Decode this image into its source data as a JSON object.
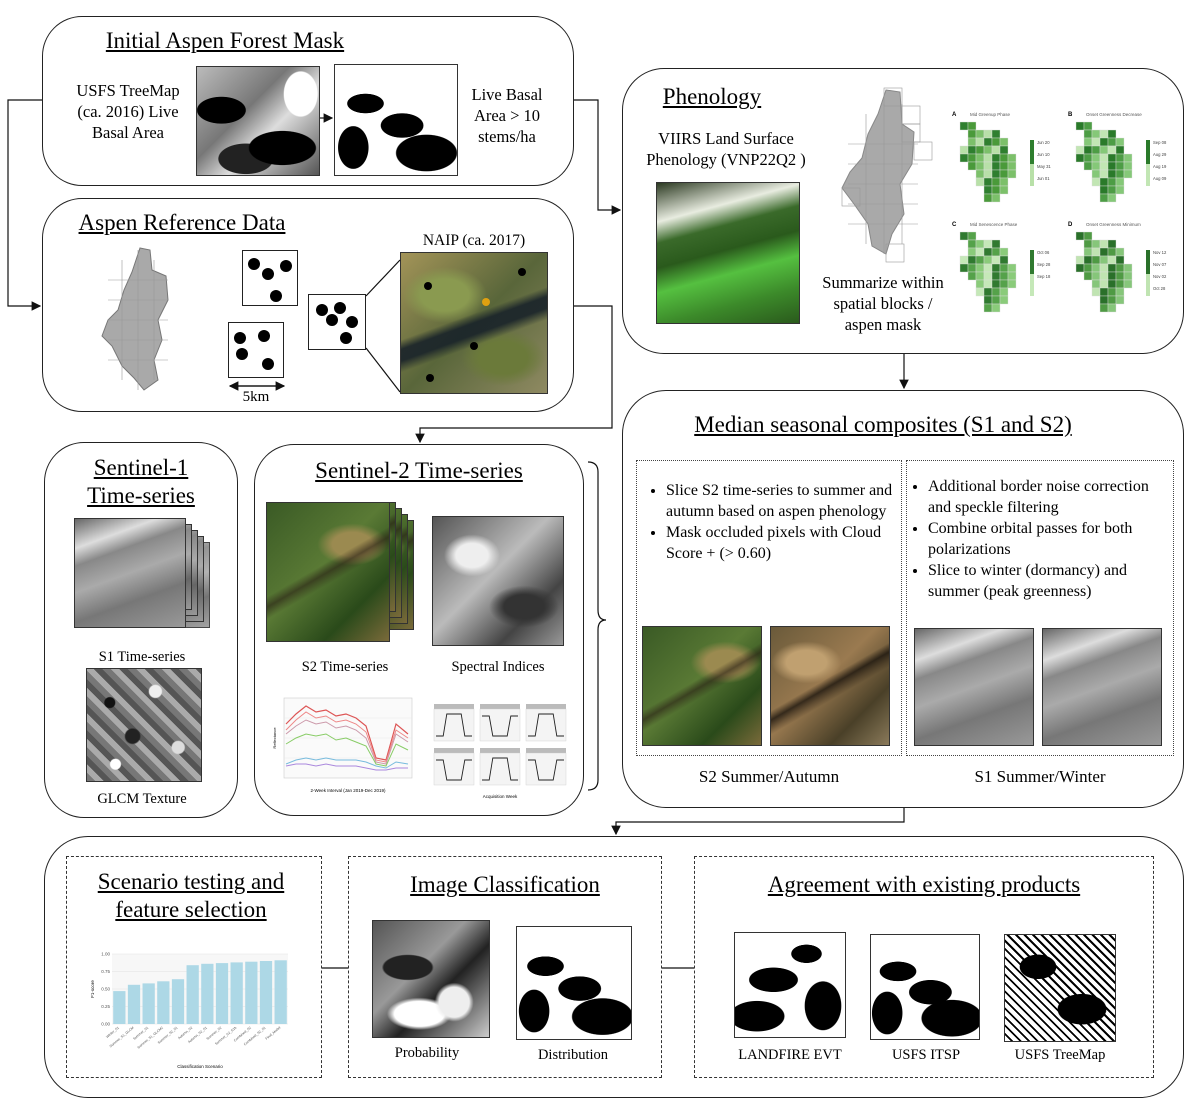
{
  "initial_mask": {
    "title": "Initial Aspen Forest Mask",
    "source_label_1": "USFS TreeMap",
    "source_label_2": "(ca. 2016) Live",
    "source_label_3": "Basal Area",
    "result_label_1": "Live Basal",
    "result_label_2": "Area > 10",
    "result_label_3": "stems/ha"
  },
  "reference": {
    "title": "Aspen Reference Data",
    "naip_label": "NAIP (ca. 2017)",
    "scale_label": "5km"
  },
  "phenology": {
    "title": "Phenology",
    "viirs_label_1": "VIIRS Land Surface",
    "viirs_label_2": "Phenology (VNP22Q2 )",
    "summary_label_1": "Summarize within",
    "summary_label_2": "spatial blocks /",
    "summary_label_3": "aspen mask",
    "panels": [
      {
        "letter": "A",
        "name": "Mid Greenup Phase",
        "ticks": [
          "Jun 20",
          "Jun 10",
          "May 31",
          "Jun 01"
        ]
      },
      {
        "letter": "B",
        "name": "Onset Greenness Decrease",
        "ticks": [
          "Sep 08",
          "Aug 29",
          "Aug 19",
          "Aug 09"
        ]
      },
      {
        "letter": "C",
        "name": "Mid Senescence Phase",
        "ticks": [
          "Oct 06",
          "Sep 28",
          "Sep 18"
        ]
      },
      {
        "letter": "D",
        "name": "Onset Greenness Minimum",
        "ticks": [
          "Nov 12",
          "Nov 07",
          "Nov 02",
          "Oct 28"
        ]
      }
    ]
  },
  "s1": {
    "title_1": "Sentinel-1",
    "title_2": "Time-series",
    "ts_label": "S1 Time-series",
    "glcm_label": "GLCM Texture"
  },
  "s2": {
    "title": "Sentinel-2 Time-series",
    "ts_label": "S2 Time-series",
    "indices_label": "Spectral Indices",
    "chart_xlabel": "2-Week Interval (Jan 2019-Dec 2019)",
    "chart_ylabel": "Reflectance",
    "small_xlabel": "Acquisition Week"
  },
  "composites": {
    "title": "Median seasonal composites (S1 and S2)",
    "s2_bullets": [
      "Slice S2 time-series to summer and autumn based on aspen phenology",
      "Mask occluded pixels with Cloud Score + (> 0.60)"
    ],
    "s1_bullets": [
      "Additional border noise correction and speckle filtering",
      "Combine orbital passes for both polarizations",
      "Slice to winter (dormancy) and summer (peak greenness)"
    ],
    "s2_caption": "S2 Summer/Autumn",
    "s1_caption": "S1 Summer/Winter"
  },
  "scenario": {
    "title_1": "Scenario testing and",
    "title_2": "feature selection",
    "chart_data": {
      "type": "bar",
      "ylabel": "F1-score",
      "xlabel": "Classification Scenario",
      "ylim": [
        0,
        1.0
      ],
      "yticks": [
        "1.00",
        "0.75",
        "0.50",
        "0.25",
        "0.00"
      ],
      "categories": [
        "Winter_S1",
        "Summer_S1_GLCM",
        "Summer_S1",
        "Summer_S1_GLCM2",
        "Summer_S2_S1",
        "Autumn_S2",
        "Autumn_S2_S1",
        "Summer_S2",
        "Summer_S2_S1b",
        "Combined_S2",
        "Combined_S2_S1",
        "Final_Model"
      ],
      "values": [
        0.47,
        0.56,
        0.58,
        0.61,
        0.64,
        0.84,
        0.86,
        0.87,
        0.88,
        0.89,
        0.9,
        0.91
      ]
    }
  },
  "classification": {
    "title": "Image Classification",
    "prob_label": "Probability",
    "dist_label": "Distribution"
  },
  "agreement": {
    "title": "Agreement with existing products",
    "labels": [
      "LANDFIRE EVT",
      "USFS ITSP",
      "USFS TreeMap"
    ]
  },
  "colors": {
    "bar": "#add8e6",
    "forest_mask_gray": "#a9a9a9",
    "pheno_green": "#3f8f3f"
  }
}
